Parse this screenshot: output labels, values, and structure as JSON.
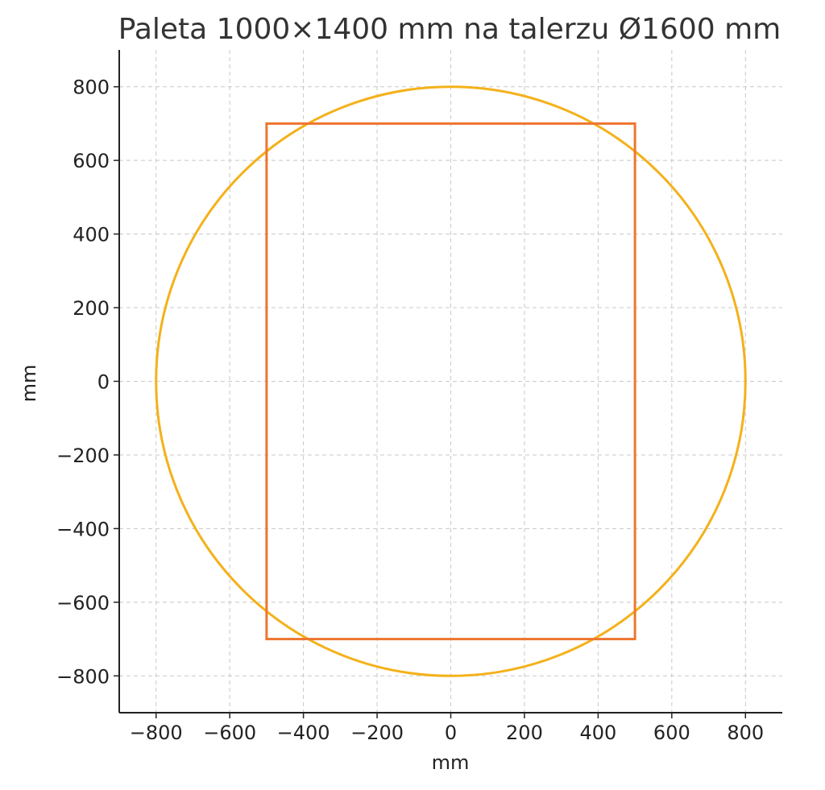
{
  "chart_data": {
    "type": "line",
    "title": "Paleta 1000×1400 mm na talerzu Ø1600 mm",
    "xlabel": "mm",
    "ylabel": "mm",
    "xlim": [
      -900,
      900
    ],
    "ylim": [
      -900,
      900
    ],
    "xticks": [
      -800,
      -600,
      -400,
      -200,
      0,
      200,
      400,
      600,
      800
    ],
    "yticks": [
      -800,
      -600,
      -400,
      -200,
      0,
      200,
      400,
      600,
      800
    ],
    "tick_labels": [
      "−800",
      "−600",
      "−400",
      "−200",
      "0",
      "200",
      "400",
      "600",
      "800"
    ],
    "grid": true,
    "shapes": [
      {
        "kind": "circle",
        "center": [
          0,
          0
        ],
        "radius": 800,
        "color": "#f4b11a"
      },
      {
        "kind": "rectangle",
        "x": [
          -500,
          500
        ],
        "y": [
          -700,
          700
        ],
        "color": "#ee7630"
      }
    ]
  }
}
